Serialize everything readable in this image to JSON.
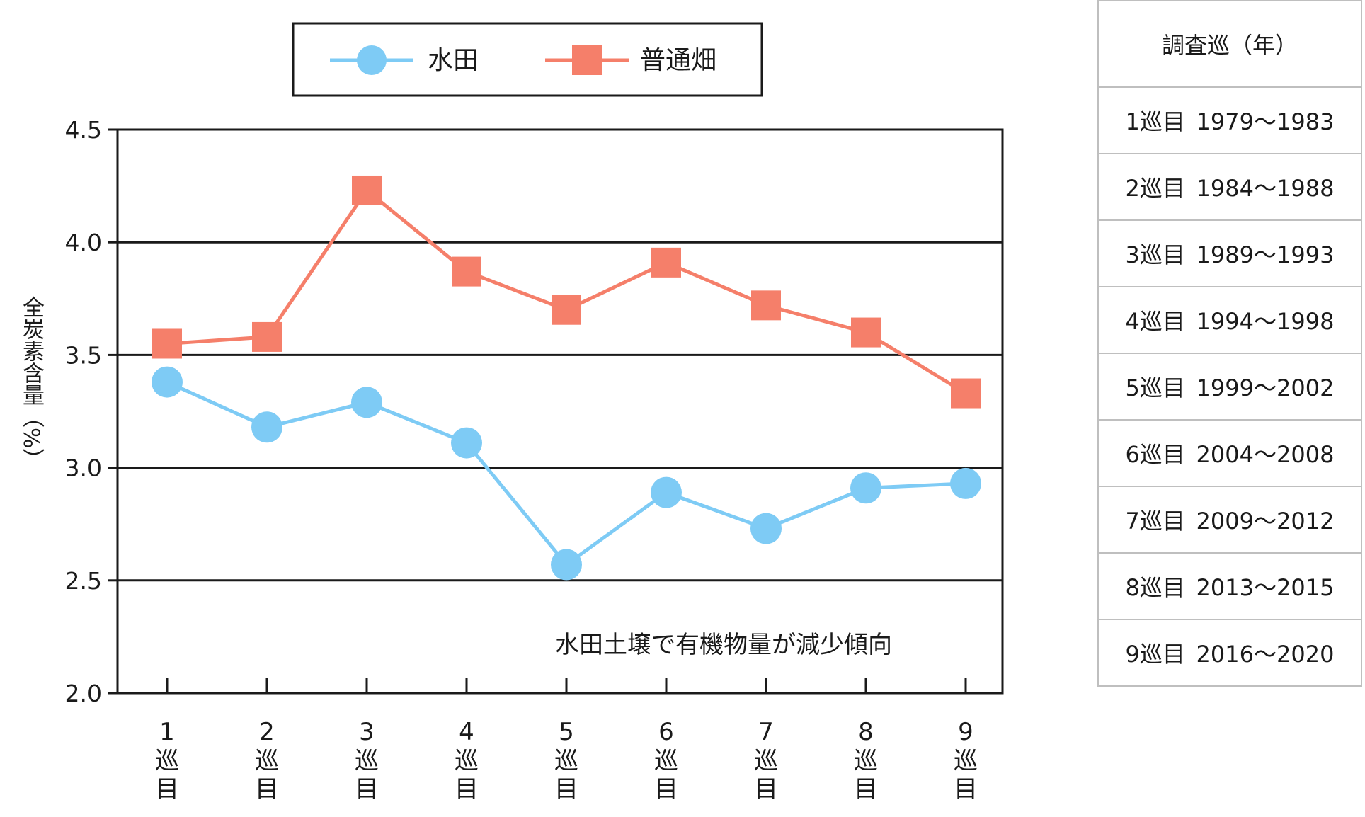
{
  "chart_data": {
    "type": "line",
    "categories": [
      "1\n巡\n目",
      "2\n巡\n目",
      "3\n巡\n目",
      "4\n巡\n目",
      "5\n巡\n目",
      "6\n巡\n目",
      "7\n巡\n目",
      "8\n巡\n目",
      "9\n巡\n目"
    ],
    "category_numbers": [
      "1",
      "2",
      "3",
      "4",
      "5",
      "6",
      "7",
      "8",
      "9"
    ],
    "category_suffix": [
      "巡",
      "目"
    ],
    "series": [
      {
        "name": "水田",
        "marker": "circle",
        "color": "#7ecbf5",
        "values": [
          3.38,
          3.18,
          3.29,
          3.11,
          2.57,
          2.89,
          2.73,
          2.91,
          2.93
        ]
      },
      {
        "name": "普通畑",
        "marker": "square",
        "color": "#f57f6a",
        "values": [
          3.55,
          3.58,
          4.23,
          3.87,
          3.7,
          3.91,
          3.72,
          3.6,
          3.33
        ]
      }
    ],
    "ylabel": "全炭素含量（%）",
    "ylim": [
      2.0,
      4.5
    ],
    "yticks": [
      "2.0",
      "2.5",
      "3.0",
      "3.5",
      "4.0",
      "4.5"
    ],
    "grid": true,
    "legend_position": "top",
    "annotation": "水田土壌で有機物量が減少傾向"
  },
  "table": {
    "header": "調査巡（年）",
    "rows": [
      {
        "round": "1巡目",
        "years": "1979～1983"
      },
      {
        "round": "2巡目",
        "years": "1984～1988"
      },
      {
        "round": "3巡目",
        "years": "1989～1993"
      },
      {
        "round": "4巡目",
        "years": "1994～1998"
      },
      {
        "round": "5巡目",
        "years": "1999～2002"
      },
      {
        "round": "6巡目",
        "years": "2004～2008"
      },
      {
        "round": "7巡目",
        "years": "2009～2012"
      },
      {
        "round": "8巡目",
        "years": "2013～2015"
      },
      {
        "round": "9巡目",
        "years": "2016～2020"
      }
    ]
  }
}
